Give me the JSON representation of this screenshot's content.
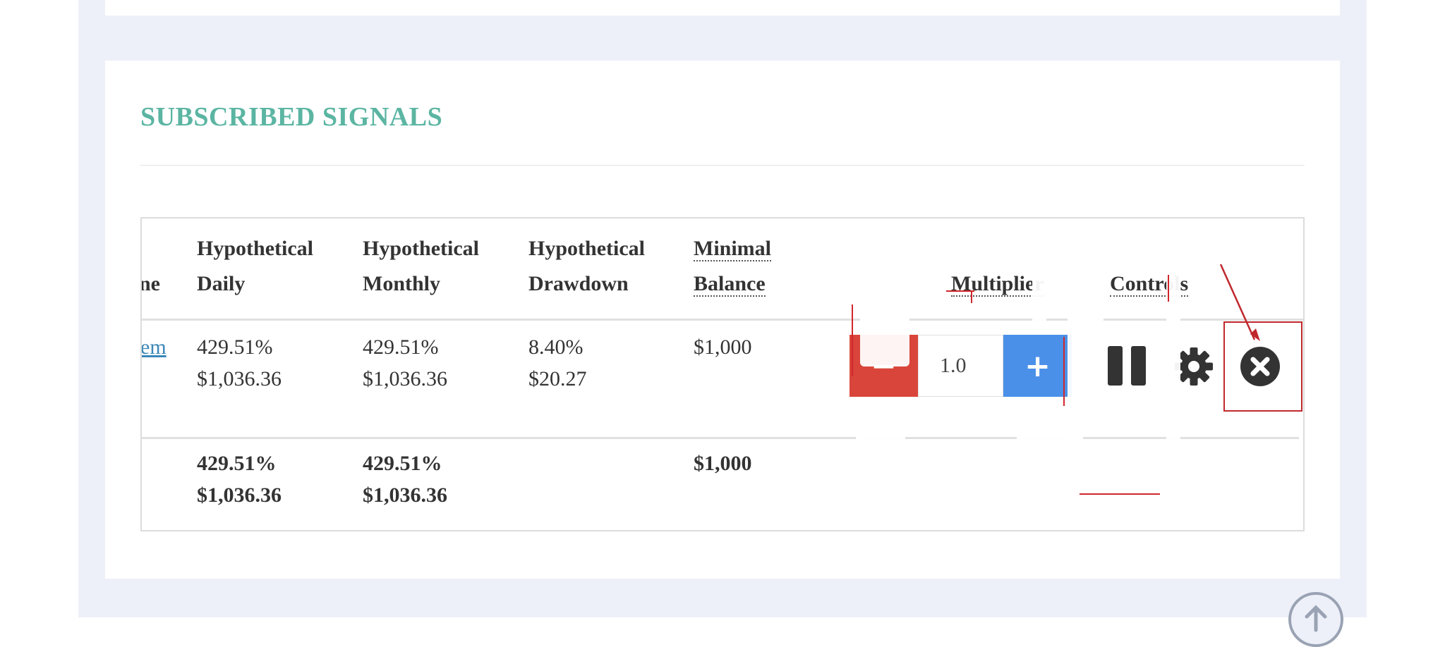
{
  "section": {
    "title": "SUBSCRIBED SIGNALS"
  },
  "table": {
    "headers": {
      "name_fragment": "ne",
      "daily": [
        "Hypothetical",
        "Daily"
      ],
      "monthly": [
        "Hypothetical",
        "Monthly"
      ],
      "drawdown": [
        "Hypothetical",
        "Drawdown"
      ],
      "min_balance": [
        "Minimal",
        "Balance"
      ],
      "multiplier": "Multiplier",
      "controls": "Controls"
    },
    "row": {
      "name_link": "em",
      "daily": [
        "429.51%",
        "$1,036.36"
      ],
      "monthly": [
        "429.51%",
        "$1,036.36"
      ],
      "drawdown": [
        "8.40%",
        "$20.27"
      ],
      "min_balance": "$1,000",
      "multiplier_value": "1.0",
      "minus_label": "−",
      "plus_label": "+"
    },
    "totals": {
      "daily": [
        "429.51%",
        "$1,036.36"
      ],
      "monthly": [
        "429.51%",
        "$1,036.36"
      ],
      "min_balance": "$1,000"
    }
  },
  "icons": {
    "pause": "pause-icon",
    "settings": "gear-icon",
    "remove": "close-circle-icon",
    "scroll_top": "arrow-up-circle-icon"
  },
  "colors": {
    "title": "#5bb5a2",
    "minus_button": "#d9453a",
    "plus_button": "#4a90e8",
    "highlight": "#c0282d",
    "page_background": "#eef0f9",
    "link": "#3a87b8"
  }
}
